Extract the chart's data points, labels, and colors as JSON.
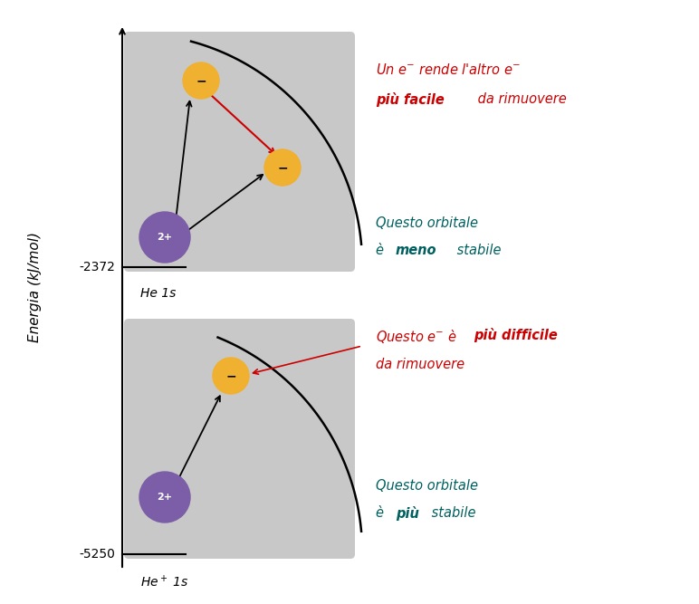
{
  "background_color": "#ffffff",
  "y_label": "Energia (kJ/mol)",
  "label_top": "He 1s",
  "tick_top": "-2372",
  "tick_bottom": "-5250",
  "box_bg": "#c8c8c8",
  "nucleus_color": "#7b5ea7",
  "electron_color": "#f0b030",
  "text_color_red": "#cc0000",
  "text_color_teal": "#006060",
  "text_color_black": "#000000"
}
